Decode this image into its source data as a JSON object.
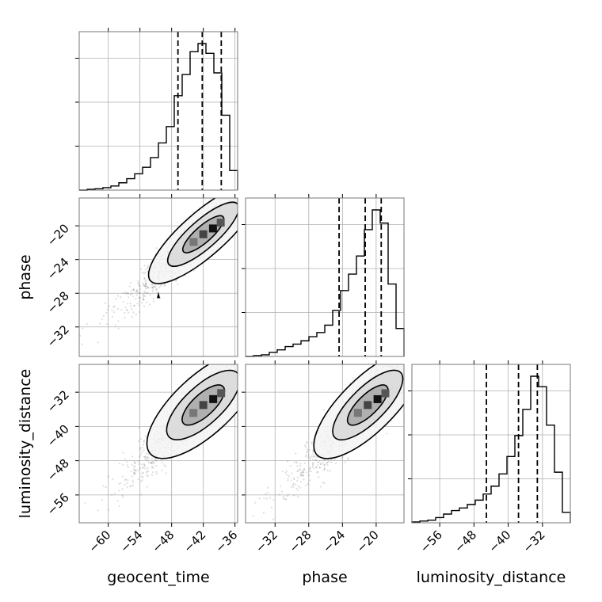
{
  "chart_data": {
    "type": "corner",
    "parameters": [
      "geocent_time",
      "phase",
      "luminosity_distance"
    ],
    "ranges": {
      "geocent_time": [
        -65.5,
        -35.5
      ],
      "phase": [
        -35.5,
        -16.7
      ],
      "luminosity_distance": [
        -62.5,
        -25.5
      ]
    },
    "ticks": {
      "geocent_time": [
        -60,
        -54,
        -48,
        -42,
        -36
      ],
      "phase": [
        -32,
        -28,
        -24,
        -20
      ],
      "luminosity_distance": [
        -56,
        -48,
        -40,
        -32
      ]
    },
    "tick_labels": {
      "geocent_time": [
        "−60",
        "−54",
        "−48",
        "−42",
        "−36"
      ],
      "phase": [
        "−32",
        "−28",
        "−24",
        "−20"
      ],
      "luminosity_distance": [
        "−56",
        "−48",
        "−40",
        "−32"
      ]
    },
    "quantiles": {
      "geocent_time": [
        -46.8,
        -42.2,
        -38.6
      ],
      "phase": [
        -24.4,
        -21.3,
        -19.4
      ],
      "luminosity_distance": [
        -45.1,
        -37.6,
        -33.2
      ]
    },
    "histograms": {
      "geocent_time": {
        "edges": [
          -65.5,
          -64.0,
          -62.5,
          -61.0,
          -59.5,
          -58.0,
          -56.5,
          -55.0,
          -53.5,
          -52.0,
          -50.5,
          -49.0,
          -47.5,
          -46.0,
          -44.5,
          -43.0,
          -41.5,
          -40.0,
          -38.5,
          -37.0,
          -35.5
        ],
        "counts": [
          0,
          0.5,
          0.8,
          1.5,
          2.5,
          4.5,
          7,
          10,
          14,
          20,
          29,
          39,
          58,
          71,
          85,
          90,
          84,
          72,
          46,
          12
        ]
      },
      "phase": {
        "edges": [
          -35.5,
          -34.56,
          -33.62,
          -32.68,
          -31.74,
          -30.8,
          -29.86,
          -28.92,
          -27.98,
          -27.04,
          -26.1,
          -25.16,
          -24.22,
          -23.28,
          -22.34,
          -21.4,
          -20.46,
          -19.52,
          -18.58,
          -17.64,
          -16.7
        ],
        "counts": [
          0,
          0.5,
          1,
          2.5,
          4,
          6,
          7.5,
          9.5,
          12,
          14.5,
          19,
          28,
          40,
          50,
          61,
          77,
          89,
          81,
          44,
          17
        ]
      },
      "luminosity_distance": {
        "edges": [
          -62.5,
          -60.65,
          -58.8,
          -56.95,
          -55.1,
          -53.25,
          -51.4,
          -49.55,
          -47.7,
          -45.85,
          -44.0,
          -42.15,
          -40.3,
          -38.45,
          -36.6,
          -34.75,
          -32.9,
          -31.05,
          -29.2,
          -27.35,
          -25.5
        ],
        "counts": [
          0.5,
          1,
          1.5,
          3,
          5,
          7,
          8.5,
          10.5,
          13,
          16.5,
          21,
          28,
          38,
          50,
          65,
          84,
          78,
          56,
          29,
          6
        ]
      }
    },
    "pairs": [
      {
        "x": "geocent_time",
        "y": "phase",
        "center": [
          -42,
          -21
        ],
        "spread": [
          5.0,
          3.0
        ],
        "corr": 0.92,
        "extra_points": [
          [
            -50.5,
            -28.3
          ]
        ]
      },
      {
        "x": "geocent_time",
        "y": "luminosity_distance",
        "center": [
          -42,
          -35
        ],
        "spread": [
          5.0,
          6.5
        ],
        "corr": 0.88,
        "extra_points": []
      },
      {
        "x": "phase",
        "y": "luminosity_distance",
        "center": [
          -21,
          -35
        ],
        "spread": [
          3.0,
          6.5
        ],
        "corr": 0.9,
        "extra_points": []
      }
    ],
    "grid": true
  }
}
